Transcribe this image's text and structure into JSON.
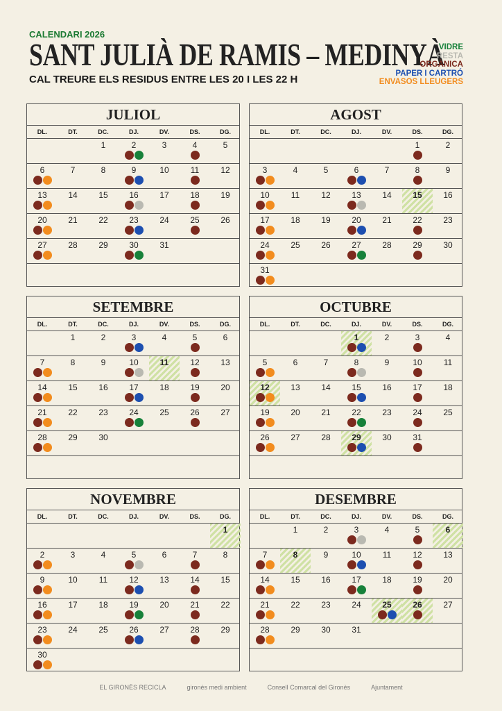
{
  "header": {
    "subtitle": "CALENDARI 2026",
    "title": "SANT JULIÀ DE RAMIS – MEDINYÀ",
    "note": "CAL TREURE ELS RESIDUS ENTRE LES 20 I LES 22 H"
  },
  "legend": [
    {
      "name": "VIDRE",
      "color": "#17813a"
    },
    {
      "name": "RESTA",
      "color": "#b9b9b1"
    },
    {
      "name": "ORGÀNICA",
      "color": "#7c2a1e"
    },
    {
      "name": "PAPER I CARTRÓ",
      "color": "#1d4fb0"
    },
    {
      "name": "ENVASOS LLEUGERS",
      "color": "#f28c1e"
    }
  ],
  "weekdays": [
    "DL.",
    "DT.",
    "DC.",
    "DJ.",
    "DV.",
    "DS.",
    "DG."
  ],
  "months": [
    {
      "name": "JULIOL",
      "weeks": [
        [
          null,
          null,
          {
            "day": 1
          },
          {
            "day": 2,
            "bins": [
              "ORGÀNICA",
              "VIDRE"
            ]
          },
          {
            "day": 3
          },
          {
            "day": 4,
            "bins": [
              "ORGÀNICA"
            ]
          },
          {
            "day": 5
          }
        ],
        [
          {
            "day": 6,
            "bins": [
              "ORGÀNICA",
              "ENVASOS LLEUGERS"
            ]
          },
          {
            "day": 7
          },
          {
            "day": 8
          },
          {
            "day": 9,
            "bins": [
              "ORGÀNICA",
              "PAPER I CARTRÓ"
            ]
          },
          {
            "day": 10
          },
          {
            "day": 11,
            "bins": [
              "ORGÀNICA"
            ]
          },
          {
            "day": 12
          }
        ],
        [
          {
            "day": 13,
            "bins": [
              "ORGÀNICA",
              "ENVASOS LLEUGERS"
            ]
          },
          {
            "day": 14
          },
          {
            "day": 15
          },
          {
            "day": 16,
            "bins": [
              "ORGÀNICA",
              "RESTA"
            ]
          },
          {
            "day": 17
          },
          {
            "day": 18,
            "bins": [
              "ORGÀNICA"
            ]
          },
          {
            "day": 19
          }
        ],
        [
          {
            "day": 20,
            "bins": [
              "ORGÀNICA",
              "ENVASOS LLEUGERS"
            ]
          },
          {
            "day": 21
          },
          {
            "day": 22
          },
          {
            "day": 23,
            "bins": [
              "ORGÀNICA",
              "PAPER I CARTRÓ"
            ]
          },
          {
            "day": 24
          },
          {
            "day": 25,
            "bins": [
              "ORGÀNICA"
            ]
          },
          {
            "day": 26
          }
        ],
        [
          {
            "day": 27,
            "bins": [
              "ORGÀNICA",
              "ENVASOS LLEUGERS"
            ]
          },
          {
            "day": 28
          },
          {
            "day": 29
          },
          {
            "day": 30,
            "bins": [
              "ORGÀNICA",
              "VIDRE"
            ]
          },
          {
            "day": 31
          },
          null,
          null
        ]
      ]
    },
    {
      "name": "AGOST",
      "weeks": [
        [
          null,
          null,
          null,
          null,
          null,
          {
            "day": 1,
            "bins": [
              "ORGÀNICA"
            ]
          },
          {
            "day": 2
          }
        ],
        [
          {
            "day": 3,
            "bins": [
              "ORGÀNICA",
              "ENVASOS LLEUGERS"
            ]
          },
          {
            "day": 4
          },
          {
            "day": 5
          },
          {
            "day": 6,
            "bins": [
              "ORGÀNICA",
              "PAPER I CARTRÓ"
            ]
          },
          {
            "day": 7
          },
          {
            "day": 8,
            "bins": [
              "ORGÀNICA"
            ]
          },
          {
            "day": 9
          }
        ],
        [
          {
            "day": 10,
            "bins": [
              "ORGÀNICA",
              "ENVASOS LLEUGERS"
            ]
          },
          {
            "day": 11
          },
          {
            "day": 12
          },
          {
            "day": 13,
            "bins": [
              "ORGÀNICA",
              "RESTA"
            ]
          },
          {
            "day": 14
          },
          {
            "day": 15,
            "holiday": true
          },
          {
            "day": 16
          }
        ],
        [
          {
            "day": 17,
            "bins": [
              "ORGÀNICA",
              "ENVASOS LLEUGERS"
            ]
          },
          {
            "day": 18
          },
          {
            "day": 19
          },
          {
            "day": 20,
            "bins": [
              "ORGÀNICA",
              "PAPER I CARTRÓ"
            ]
          },
          {
            "day": 21
          },
          {
            "day": 22,
            "bins": [
              "ORGÀNICA"
            ]
          },
          {
            "day": 23
          }
        ],
        [
          {
            "day": 24,
            "bins": [
              "ORGÀNICA",
              "ENVASOS LLEUGERS"
            ]
          },
          {
            "day": 25
          },
          {
            "day": 26
          },
          {
            "day": 27,
            "bins": [
              "ORGÀNICA",
              "VIDRE"
            ]
          },
          {
            "day": 28
          },
          {
            "day": 29,
            "bins": [
              "ORGÀNICA"
            ]
          },
          {
            "day": 30
          }
        ],
        [
          {
            "day": 31,
            "bins": [
              "ORGÀNICA",
              "ENVASOS LLEUGERS"
            ]
          },
          null,
          null,
          null,
          null,
          null,
          null
        ]
      ]
    },
    {
      "name": "SETEMBRE",
      "weeks": [
        [
          null,
          {
            "day": 1
          },
          {
            "day": 2
          },
          {
            "day": 3,
            "bins": [
              "ORGÀNICA",
              "PAPER I CARTRÓ"
            ]
          },
          {
            "day": 4
          },
          {
            "day": 5,
            "bins": [
              "ORGÀNICA"
            ]
          },
          {
            "day": 6
          }
        ],
        [
          {
            "day": 7,
            "bins": [
              "ORGÀNICA",
              "ENVASOS LLEUGERS"
            ]
          },
          {
            "day": 8
          },
          {
            "day": 9
          },
          {
            "day": 10,
            "bins": [
              "ORGÀNICA",
              "RESTA"
            ]
          },
          {
            "day": 11,
            "holiday": true
          },
          {
            "day": 12,
            "bins": [
              "ORGÀNICA"
            ]
          },
          {
            "day": 13
          }
        ],
        [
          {
            "day": 14,
            "bins": [
              "ORGÀNICA",
              "ENVASOS LLEUGERS"
            ]
          },
          {
            "day": 15
          },
          {
            "day": 16
          },
          {
            "day": 17,
            "bins": [
              "ORGÀNICA",
              "PAPER I CARTRÓ"
            ]
          },
          {
            "day": 18
          },
          {
            "day": 19,
            "bins": [
              "ORGÀNICA"
            ]
          },
          {
            "day": 20
          }
        ],
        [
          {
            "day": 21,
            "bins": [
              "ORGÀNICA",
              "ENVASOS LLEUGERS"
            ]
          },
          {
            "day": 22
          },
          {
            "day": 23
          },
          {
            "day": 24,
            "bins": [
              "ORGÀNICA",
              "VIDRE"
            ]
          },
          {
            "day": 25
          },
          {
            "day": 26,
            "bins": [
              "ORGÀNICA"
            ]
          },
          {
            "day": 27
          }
        ],
        [
          {
            "day": 28,
            "bins": [
              "ORGÀNICA",
              "ENVASOS LLEUGERS"
            ]
          },
          {
            "day": 29
          },
          {
            "day": 30
          },
          null,
          null,
          null,
          null
        ]
      ]
    },
    {
      "name": "OCTUBRE",
      "weeks": [
        [
          null,
          null,
          null,
          {
            "day": 1,
            "bins": [
              "ORGÀNICA",
              "PAPER I CARTRÓ"
            ],
            "holiday": true
          },
          {
            "day": 2
          },
          {
            "day": 3,
            "bins": [
              "ORGÀNICA"
            ]
          },
          {
            "day": 4
          }
        ],
        [
          {
            "day": 5,
            "bins": [
              "ORGÀNICA",
              "ENVASOS LLEUGERS"
            ]
          },
          {
            "day": 6
          },
          {
            "day": 7
          },
          {
            "day": 8,
            "bins": [
              "ORGÀNICA",
              "RESTA"
            ]
          },
          {
            "day": 9
          },
          {
            "day": 10,
            "bins": [
              "ORGÀNICA"
            ]
          },
          {
            "day": 11
          }
        ],
        [
          {
            "day": 12,
            "bins": [
              "ORGÀNICA",
              "ENVASOS LLEUGERS"
            ],
            "holiday": true
          },
          {
            "day": 13
          },
          {
            "day": 14
          },
          {
            "day": 15,
            "bins": [
              "ORGÀNICA",
              "PAPER I CARTRÓ"
            ]
          },
          {
            "day": 16
          },
          {
            "day": 17,
            "bins": [
              "ORGÀNICA"
            ]
          },
          {
            "day": 18
          }
        ],
        [
          {
            "day": 19,
            "bins": [
              "ORGÀNICA",
              "ENVASOS LLEUGERS"
            ]
          },
          {
            "day": 20
          },
          {
            "day": 21
          },
          {
            "day": 22,
            "bins": [
              "ORGÀNICA",
              "VIDRE"
            ]
          },
          {
            "day": 23
          },
          {
            "day": 24,
            "bins": [
              "ORGÀNICA"
            ]
          },
          {
            "day": 25
          }
        ],
        [
          {
            "day": 26,
            "bins": [
              "ORGÀNICA",
              "ENVASOS LLEUGERS"
            ]
          },
          {
            "day": 27
          },
          {
            "day": 28
          },
          {
            "day": 29,
            "bins": [
              "ORGÀNICA",
              "PAPER I CARTRÓ"
            ],
            "holiday": true
          },
          {
            "day": 30
          },
          {
            "day": 31,
            "bins": [
              "ORGÀNICA"
            ]
          },
          null
        ]
      ]
    },
    {
      "name": "NOVEMBRE",
      "weeks": [
        [
          null,
          null,
          null,
          null,
          null,
          null,
          {
            "day": 1,
            "holiday": true
          }
        ],
        [
          {
            "day": 2,
            "bins": [
              "ORGÀNICA",
              "ENVASOS LLEUGERS"
            ]
          },
          {
            "day": 3
          },
          {
            "day": 4
          },
          {
            "day": 5,
            "bins": [
              "ORGÀNICA",
              "RESTA"
            ]
          },
          {
            "day": 6
          },
          {
            "day": 7,
            "bins": [
              "ORGÀNICA"
            ]
          },
          {
            "day": 8
          }
        ],
        [
          {
            "day": 9,
            "bins": [
              "ORGÀNICA",
              "ENVASOS LLEUGERS"
            ]
          },
          {
            "day": 10
          },
          {
            "day": 11
          },
          {
            "day": 12,
            "bins": [
              "ORGÀNICA",
              "PAPER I CARTRÓ"
            ]
          },
          {
            "day": 13
          },
          {
            "day": 14,
            "bins": [
              "ORGÀNICA"
            ]
          },
          {
            "day": 15
          }
        ],
        [
          {
            "day": 16,
            "bins": [
              "ORGÀNICA",
              "ENVASOS LLEUGERS"
            ]
          },
          {
            "day": 17
          },
          {
            "day": 18
          },
          {
            "day": 19,
            "bins": [
              "ORGÀNICA",
              "VIDRE"
            ]
          },
          {
            "day": 20
          },
          {
            "day": 21,
            "bins": [
              "ORGÀNICA"
            ]
          },
          {
            "day": 22
          }
        ],
        [
          {
            "day": 23,
            "bins": [
              "ORGÀNICA",
              "ENVASOS LLEUGERS"
            ]
          },
          {
            "day": 24
          },
          {
            "day": 25
          },
          {
            "day": 26,
            "bins": [
              "ORGÀNICA",
              "PAPER I CARTRÓ"
            ]
          },
          {
            "day": 27
          },
          {
            "day": 28,
            "bins": [
              "ORGÀNICA"
            ]
          },
          {
            "day": 29
          }
        ],
        [
          {
            "day": 30,
            "bins": [
              "ORGÀNICA",
              "ENVASOS LLEUGERS"
            ]
          },
          null,
          null,
          null,
          null,
          null,
          null
        ]
      ]
    },
    {
      "name": "DESEMBRE",
      "weeks": [
        [
          null,
          {
            "day": 1
          },
          {
            "day": 2
          },
          {
            "day": 3,
            "bins": [
              "ORGÀNICA",
              "RESTA"
            ]
          },
          {
            "day": 4
          },
          {
            "day": 5,
            "bins": [
              "ORGÀNICA"
            ]
          },
          {
            "day": 6,
            "holiday": true
          }
        ],
        [
          {
            "day": 7,
            "bins": [
              "ORGÀNICA",
              "ENVASOS LLEUGERS"
            ]
          },
          {
            "day": 8,
            "holiday": true
          },
          {
            "day": 9
          },
          {
            "day": 10,
            "bins": [
              "ORGÀNICA",
              "PAPER I CARTRÓ"
            ]
          },
          {
            "day": 11
          },
          {
            "day": 12,
            "bins": [
              "ORGÀNICA"
            ]
          },
          {
            "day": 13
          }
        ],
        [
          {
            "day": 14,
            "bins": [
              "ORGÀNICA",
              "ENVASOS LLEUGERS"
            ]
          },
          {
            "day": 15
          },
          {
            "day": 16
          },
          {
            "day": 17,
            "bins": [
              "ORGÀNICA",
              "VIDRE"
            ]
          },
          {
            "day": 18
          },
          {
            "day": 19,
            "bins": [
              "ORGÀNICA"
            ]
          },
          {
            "day": 20
          }
        ],
        [
          {
            "day": 21,
            "bins": [
              "ORGÀNICA",
              "ENVASOS LLEUGERS"
            ]
          },
          {
            "day": 22
          },
          {
            "day": 23
          },
          {
            "day": 24
          },
          {
            "day": 25,
            "bins": [
              "ORGÀNICA",
              "PAPER I CARTRÓ"
            ],
            "holiday": true
          },
          {
            "day": 26,
            "bins": [
              "ORGÀNICA"
            ],
            "holiday": true
          },
          {
            "day": 27
          }
        ],
        [
          {
            "day": 28,
            "bins": [
              "ORGÀNICA",
              "ENVASOS LLEUGERS"
            ]
          },
          {
            "day": 29
          },
          {
            "day": 30
          },
          {
            "day": 31
          },
          null,
          null,
          null
        ]
      ]
    }
  ],
  "footer": {
    "logos": [
      "EL GIRONÈS RECICLA",
      "gironès medi ambient",
      "Consell Comarcal del Gironès",
      "Ajuntament"
    ]
  }
}
